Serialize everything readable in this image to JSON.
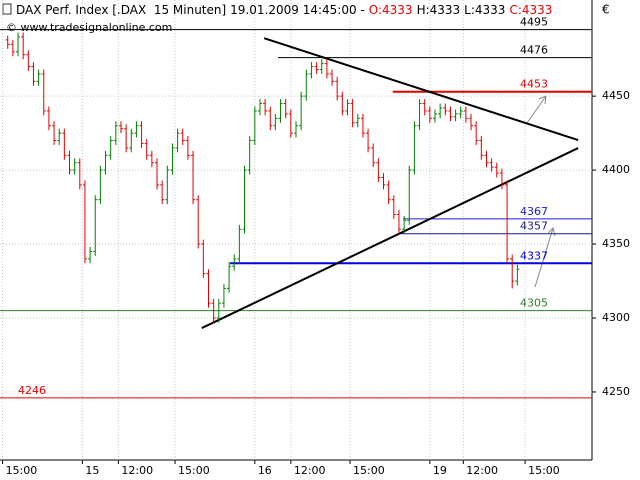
{
  "chart_data": {
    "type": "ohlc",
    "title": "DAX Perf. Index [.DAX  15 Minuten]",
    "subtitle": "19.01.2009 14:45:00 -",
    "quote": [
      "O:4333",
      "H:4333",
      "L:4333",
      "C:4333"
    ],
    "quote_colors": [
      "#e00000",
      "#000000",
      "#000000",
      "#e00000"
    ],
    "watermark": "© www.tradesignalonline.com",
    "currency": "€",
    "up_color": "#008000",
    "down_color": "#e00000",
    "grid": true,
    "xlim": [
      -1.5,
      113.5
    ],
    "xticks": [
      {
        "value": -1,
        "label": "15:00"
      },
      {
        "value": 14.5,
        "label": "15"
      },
      {
        "value": 21.5,
        "label": "12:00"
      },
      {
        "value": 32.5,
        "label": "15:00"
      },
      {
        "value": 48,
        "label": "16"
      },
      {
        "value": 55,
        "label": "12:00"
      },
      {
        "value": 66.5,
        "label": "15:00"
      },
      {
        "value": 82,
        "label": "19"
      },
      {
        "value": 88.5,
        "label": "12:00"
      },
      {
        "value": 100.5,
        "label": "15:00"
      }
    ],
    "ylim": [
      4204,
      4515
    ],
    "yticks": [
      4250,
      4300,
      4350,
      4400,
      4450
    ],
    "open": [
      4488,
      4485,
      4480,
      4490,
      4478,
      4470,
      4460,
      4465,
      4440,
      4430,
      4420,
      4425,
      4410,
      4400,
      4405,
      4390,
      4340,
      4345,
      4380,
      4400,
      4410,
      4420,
      4430,
      4428,
      4415,
      4425,
      4430,
      4418,
      4410,
      4405,
      4390,
      4380,
      4400,
      4415,
      4425,
      4420,
      4410,
      4380,
      4350,
      4330,
      4310,
      4300,
      4310,
      4320,
      4335,
      4340,
      4360,
      4400,
      4420,
      4440,
      4445,
      4440,
      4430,
      4435,
      4445,
      4438,
      4425,
      4430,
      4450,
      4465,
      4470,
      4468,
      4472,
      4465,
      4460,
      4450,
      4440,
      4445,
      4432,
      4435,
      4425,
      4415,
      4405,
      4395,
      4390,
      4380,
      4370,
      4360,
      4366,
      4400,
      4430,
      4445,
      4440,
      4435,
      4438,
      4442,
      4440,
      4436,
      4438,
      4440,
      4435,
      4430,
      4420,
      4410,
      4405,
      4402,
      4398,
      4390,
      4340,
      4325
    ],
    "high": [
      4491,
      4488,
      4493,
      4493,
      4481,
      4473,
      4468,
      4468,
      4443,
      4433,
      4428,
      4428,
      4413,
      4408,
      4408,
      4393,
      4348,
      4383,
      4403,
      4413,
      4423,
      4433,
      4433,
      4431,
      4428,
      4433,
      4433,
      4421,
      4413,
      4408,
      4393,
      4403,
      4418,
      4428,
      4428,
      4423,
      4413,
      4383,
      4353,
      4333,
      4313,
      4313,
      4323,
      4338,
      4343,
      4363,
      4403,
      4423,
      4443,
      4448,
      4448,
      4443,
      4438,
      4448,
      4448,
      4441,
      4433,
      4453,
      4468,
      4473,
      4473,
      4475,
      4475,
      4468,
      4463,
      4453,
      4448,
      4448,
      4438,
      4438,
      4428,
      4418,
      4408,
      4398,
      4393,
      4383,
      4373,
      4369,
      4403,
      4433,
      4448,
      4448,
      4443,
      4441,
      4445,
      4445,
      4443,
      4441,
      4443,
      4443,
      4438,
      4433,
      4423,
      4413,
      4408,
      4405,
      4401,
      4393,
      4343,
      4336
    ],
    "low": [
      4482,
      4477,
      4477,
      4475,
      4467,
      4457,
      4457,
      4437,
      4427,
      4417,
      4417,
      4407,
      4397,
      4397,
      4387,
      4337,
      4337,
      4342,
      4377,
      4397,
      4407,
      4417,
      4425,
      4412,
      4412,
      4422,
      4415,
      4407,
      4402,
      4387,
      4377,
      4377,
      4397,
      4412,
      4417,
      4407,
      4377,
      4347,
      4327,
      4307,
      4296,
      4297,
      4307,
      4317,
      4332,
      4337,
      4357,
      4397,
      4417,
      4437,
      4437,
      4427,
      4427,
      4432,
      4435,
      4422,
      4422,
      4427,
      4447,
      4462,
      4465,
      4465,
      4462,
      4457,
      4447,
      4437,
      4437,
      4429,
      4429,
      4422,
      4412,
      4402,
      4392,
      4387,
      4377,
      4367,
      4357,
      4357,
      4363,
      4397,
      4427,
      4437,
      4432,
      4432,
      4435,
      4437,
      4433,
      4433,
      4435,
      4432,
      4427,
      4417,
      4407,
      4402,
      4399,
      4395,
      4387,
      4337,
      4320,
      4322
    ],
    "close": [
      4485,
      4480,
      4490,
      4478,
      4470,
      4460,
      4465,
      4440,
      4430,
      4420,
      4425,
      4410,
      4400,
      4405,
      4390,
      4340,
      4345,
      4380,
      4400,
      4410,
      4420,
      4430,
      4428,
      4415,
      4425,
      4430,
      4418,
      4410,
      4405,
      4390,
      4380,
      4400,
      4415,
      4425,
      4420,
      4410,
      4380,
      4350,
      4330,
      4310,
      4300,
      4310,
      4320,
      4335,
      4340,
      4360,
      4400,
      4420,
      4440,
      4445,
      4440,
      4430,
      4435,
      4445,
      4438,
      4425,
      4430,
      4450,
      4465,
      4470,
      4468,
      4472,
      4465,
      4460,
      4450,
      4440,
      4445,
      4432,
      4435,
      4425,
      4415,
      4405,
      4395,
      4390,
      4380,
      4370,
      4360,
      4366,
      4400,
      4430,
      4445,
      4440,
      4435,
      4438,
      4442,
      4440,
      4436,
      4438,
      4440,
      4435,
      4430,
      4420,
      4410,
      4405,
      4402,
      4398,
      4390,
      4340,
      4325,
      4333
    ],
    "levels": [
      {
        "value": 4495,
        "from": -1.5,
        "color": "#000000",
        "width": 1,
        "label_side": "right"
      },
      {
        "value": 4476,
        "from": 52.5,
        "color": "#000000",
        "width": 1,
        "label_side": "right"
      },
      {
        "value": 4453,
        "from": 74.8,
        "color": "#e00000",
        "width": 2,
        "label_side": "right"
      },
      {
        "value": 4367,
        "from": 76.8,
        "color": "#1a1ad0",
        "width": 1,
        "label_side": "right"
      },
      {
        "value": 4357,
        "from": 76,
        "color": "#1a1a8c",
        "width": 1,
        "label_side": "right"
      },
      {
        "value": 4337,
        "from": 43.2,
        "color": "#0000e0",
        "width": 2,
        "label_side": "right"
      },
      {
        "value": 4305,
        "from": -1.5,
        "color": "#2e7d2e",
        "width": 1,
        "label_side": "right"
      },
      {
        "value": 4246,
        "from": -1.5,
        "color": "#e00000",
        "width": 1,
        "label_side": "left"
      }
    ],
    "trendlines": [
      {
        "x": [
          49.8,
          110.8
        ],
        "y": [
          4489.2,
          4420.3
        ],
        "color": "#000000"
      },
      {
        "x": [
          37.7,
          110.8
        ],
        "y": [
          4293.2,
          4414.9
        ],
        "color": "#000000"
      }
    ]
  }
}
